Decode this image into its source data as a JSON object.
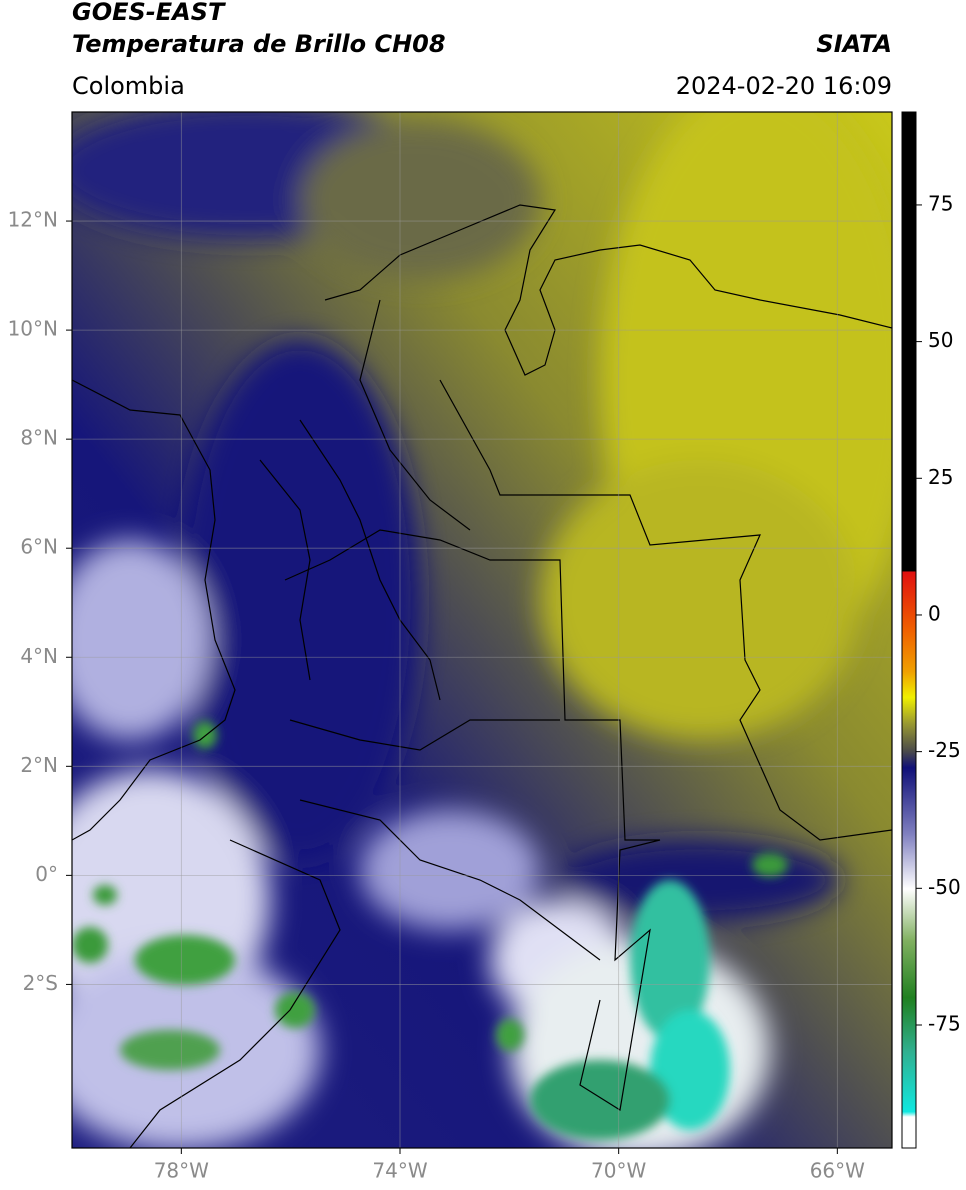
{
  "header": {
    "title_line1": "GOES-EAST",
    "title_line2": "Temperatura de Brillo CH08",
    "source": "SIATA",
    "region": "Colombia",
    "datetime": "2024-02-20 16:09"
  },
  "map": {
    "xlim": [
      -80,
      -65
    ],
    "ylim": [
      -5,
      14
    ],
    "xticks": [
      {
        "value": -78,
        "label": "78°W"
      },
      {
        "value": -74,
        "label": "74°W"
      },
      {
        "value": -70,
        "label": "70°W"
      },
      {
        "value": -66,
        "label": "66°W"
      }
    ],
    "yticks": [
      {
        "value": 12,
        "label": "12°N"
      },
      {
        "value": 10,
        "label": "10°N"
      },
      {
        "value": 8,
        "label": "8°N"
      },
      {
        "value": 6,
        "label": "6°N"
      },
      {
        "value": 4,
        "label": "4°N"
      },
      {
        "value": 2,
        "label": "2°N"
      },
      {
        "value": 0,
        "label": "0°"
      },
      {
        "value": -2,
        "label": "2°S"
      }
    ]
  },
  "colorbar": {
    "lim": [
      -97.5,
      92
    ],
    "ticks": [
      75,
      50,
      25,
      0,
      -25,
      -50,
      -75
    ]
  }
}
